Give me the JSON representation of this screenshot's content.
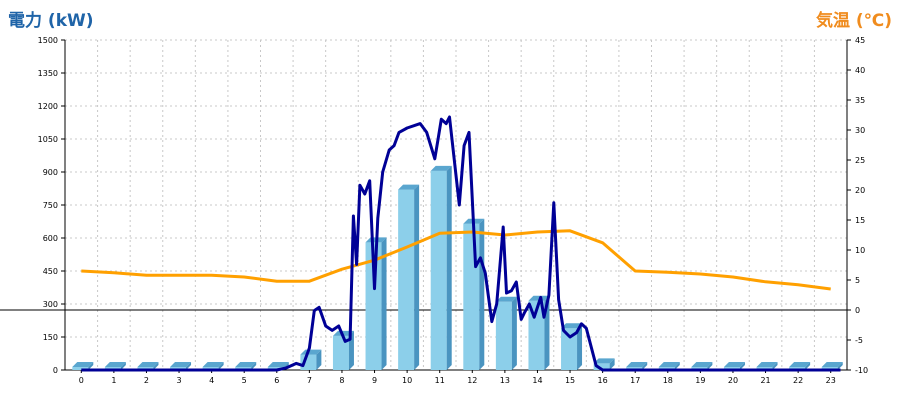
{
  "titles": {
    "left": "電力 (kW)",
    "right": "気温 (℃)"
  },
  "colors": {
    "left_title": "#1f64a8",
    "right_title": "#f08c1e",
    "bar_front": "#8ccfea",
    "bar_side": "#4a94c0",
    "bar_top": "#5aa6cf",
    "power_line": "#000096",
    "temp_line": "#ffa000",
    "grid": "#c8c8c8"
  },
  "chart_data": {
    "type": "bar",
    "categories": [
      "0",
      "1",
      "2",
      "3",
      "4",
      "5",
      "6",
      "7",
      "8",
      "9",
      "10",
      "11",
      "12",
      "13",
      "14",
      "15",
      "16",
      "17",
      "18",
      "19",
      "20",
      "21",
      "22",
      "23"
    ],
    "ylim_left": [
      0,
      1500
    ],
    "ylim_right": [
      -10,
      45
    ],
    "y_ticks_left": [
      0,
      150,
      300,
      450,
      600,
      750,
      900,
      1050,
      1200,
      1350,
      1500
    ],
    "y_ticks_right": [
      -10,
      -5,
      0,
      5,
      10,
      15,
      20,
      25,
      30,
      35,
      40,
      45
    ],
    "grid": true,
    "bars": {
      "axis": "left",
      "values": [
        0,
        0,
        0,
        0,
        0,
        0,
        0,
        70,
        155,
        580,
        820,
        905,
        665,
        310,
        315,
        190,
        30,
        0,
        0,
        0,
        0,
        0,
        0,
        0
      ]
    },
    "power_line": {
      "axis": "left",
      "x": [
        0,
        6,
        6.3,
        6.6,
        6.8,
        7,
        7.15,
        7.3,
        7.5,
        7.7,
        7.9,
        8.1,
        8.25,
        8.35,
        8.45,
        8.55,
        8.7,
        8.85,
        9.0,
        9.1,
        9.25,
        9.45,
        9.6,
        9.75,
        10.0,
        10.4,
        10.6,
        10.85,
        10.95,
        11.05,
        11.2,
        11.3,
        11.45,
        11.6,
        11.75,
        11.9,
        12.1,
        12.25,
        12.4,
        12.6,
        12.75,
        12.95,
        13.05,
        13.2,
        13.35,
        13.5,
        13.6,
        13.75,
        13.9,
        14.1,
        14.2,
        14.35,
        14.5,
        14.65,
        14.8,
        15.0,
        15.2,
        15.35,
        15.5,
        15.8,
        16.0,
        23.3
      ],
      "y": [
        0,
        0,
        10,
        30,
        20,
        100,
        270,
        285,
        200,
        180,
        200,
        130,
        140,
        700,
        480,
        840,
        800,
        860,
        370,
        690,
        900,
        1000,
        1020,
        1080,
        1100,
        1120,
        1080,
        960,
        1050,
        1140,
        1120,
        1150,
        950,
        750,
        1020,
        1080,
        470,
        510,
        440,
        220,
        300,
        650,
        350,
        360,
        400,
        230,
        260,
        300,
        240,
        330,
        240,
        340,
        760,
        320,
        180,
        150,
        170,
        210,
        190,
        20,
        0,
        0
      ]
    },
    "temp_line": {
      "axis": "right",
      "x": [
        0,
        1,
        2,
        3,
        4,
        5,
        6,
        7,
        8,
        9,
        10,
        11,
        12,
        13,
        14,
        15,
        16,
        17,
        18,
        19,
        20,
        21,
        22,
        23
      ],
      "y": [
        6.5,
        6.2,
        5.8,
        5.8,
        5.8,
        5.5,
        4.8,
        4.8,
        6.8,
        8.3,
        10.5,
        12.8,
        13.0,
        12.5,
        13.0,
        13.2,
        11.2,
        6.5,
        6.3,
        6.0,
        5.5,
        4.7,
        4.2,
        3.5
      ]
    },
    "zero_line_axis": "right"
  }
}
